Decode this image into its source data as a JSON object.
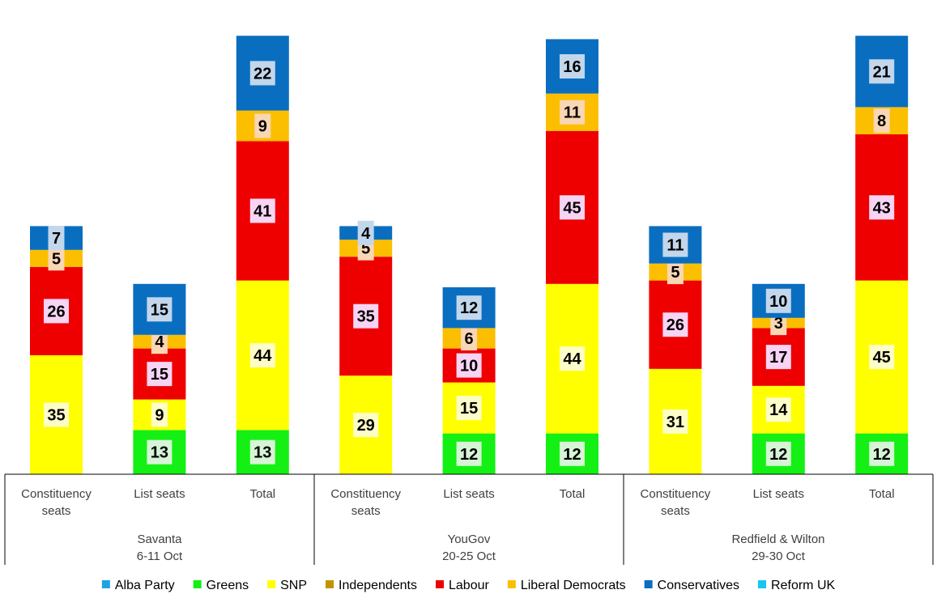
{
  "chart_data": {
    "type": "bar",
    "stacked": true,
    "title": "",
    "xlabel": "",
    "ylabel": "",
    "legend_position": "bottom",
    "groups": [
      {
        "name_lines": [
          "Savanta",
          "6-11 Oct"
        ],
        "categories": [
          0,
          1,
          2
        ]
      },
      {
        "name_lines": [
          "YouGov",
          "20-25 Oct"
        ],
        "categories": [
          3,
          4,
          5
        ]
      },
      {
        "name_lines": [
          "Redfield & Wilton",
          "29-30 Oct"
        ],
        "categories": [
          6,
          7,
          8
        ]
      }
    ],
    "categories": [
      {
        "lines": [
          "Constituency",
          "seats"
        ]
      },
      {
        "lines": [
          "List seats"
        ]
      },
      {
        "lines": [
          "Total"
        ]
      },
      {
        "lines": [
          "Constituency",
          "seats"
        ]
      },
      {
        "lines": [
          "List seats"
        ]
      },
      {
        "lines": [
          "Total"
        ]
      },
      {
        "lines": [
          "Constituency",
          "seats"
        ]
      },
      {
        "lines": [
          "List seats"
        ]
      },
      {
        "lines": [
          "Total"
        ]
      }
    ],
    "series": [
      {
        "name": "Alba Party",
        "color": "#1fa3e0",
        "values": [
          0,
          0,
          0,
          0,
          0,
          0,
          0,
          0,
          0
        ]
      },
      {
        "name": "Greens",
        "color": "#14f014",
        "values": [
          0,
          13,
          13,
          0,
          12,
          12,
          0,
          12,
          12
        ]
      },
      {
        "name": "SNP",
        "color": "#ffff00",
        "values": [
          35,
          9,
          44,
          29,
          15,
          44,
          31,
          14,
          45
        ]
      },
      {
        "name": "Independents",
        "color": "#c09400",
        "values": [
          0,
          0,
          0,
          0,
          0,
          0,
          0,
          0,
          0
        ]
      },
      {
        "name": "Labour",
        "color": "#ee0000",
        "values": [
          26,
          15,
          41,
          35,
          10,
          45,
          26,
          17,
          43
        ]
      },
      {
        "name": "Liberal Democrats",
        "color": "#fbbf00",
        "values": [
          5,
          4,
          9,
          5,
          6,
          11,
          5,
          3,
          8
        ]
      },
      {
        "name": "Conservatives",
        "color": "#0a6ec0",
        "values": [
          7,
          15,
          22,
          4,
          12,
          16,
          11,
          10,
          21
        ]
      },
      {
        "name": "Reform UK",
        "color": "#12c8f0",
        "values": [
          0,
          0,
          0,
          0,
          0,
          0,
          0,
          0,
          0
        ]
      }
    ],
    "label_backgrounds": {
      "Greens": "#d6f5d6",
      "SNP": "#fdfdc8",
      "Labour": "#f8d4f4",
      "Liberal Democrats": "#f9d6b4",
      "Conservatives": "#c2d6ec"
    }
  }
}
